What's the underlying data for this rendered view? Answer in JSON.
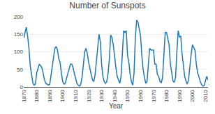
{
  "chart_data": {
    "type": "line",
    "title": "Number of Sunspots",
    "xlabel": "Year",
    "x": [
      1870,
      1871,
      1872,
      1873,
      1874,
      1875,
      1876,
      1877,
      1878,
      1879,
      1880,
      1881,
      1882,
      1883,
      1884,
      1885,
      1886,
      1887,
      1888,
      1889,
      1890,
      1891,
      1892,
      1893,
      1894,
      1895,
      1896,
      1897,
      1898,
      1899,
      1900,
      1901,
      1902,
      1903,
      1904,
      1905,
      1906,
      1907,
      1908,
      1909,
      1910,
      1911,
      1912,
      1913,
      1914,
      1915,
      1916,
      1917,
      1918,
      1919,
      1920,
      1921,
      1922,
      1923,
      1924,
      1925,
      1926,
      1927,
      1928,
      1929,
      1930,
      1931,
      1932,
      1933,
      1934,
      1935,
      1936,
      1937,
      1938,
      1939,
      1940,
      1941,
      1942,
      1943,
      1944,
      1945,
      1946,
      1947,
      1948,
      1949,
      1950,
      1951,
      1952,
      1953,
      1954,
      1955,
      1956,
      1957,
      1958,
      1959,
      1960,
      1961,
      1962,
      1963,
      1964,
      1965,
      1966,
      1967,
      1968,
      1969,
      1970,
      1971,
      1972,
      1973,
      1974,
      1975,
      1976,
      1977,
      1978,
      1979,
      1980,
      1981,
      1982,
      1983,
      1984,
      1985,
      1986,
      1987,
      1988,
      1989,
      1990,
      1991,
      1992,
      1993,
      1994,
      1995,
      1996,
      1997,
      1998,
      1999,
      2000,
      2001,
      2002,
      2003,
      2004,
      2005,
      2006,
      2007,
      2008,
      2009,
      2010,
      2011,
      2012
    ],
    "values": [
      139,
      155,
      170,
      145,
      110,
      60,
      30,
      12,
      5,
      8,
      40,
      55,
      65,
      60,
      55,
      38,
      20,
      10,
      8,
      5,
      7,
      35,
      60,
      90,
      110,
      115,
      105,
      80,
      70,
      40,
      15,
      8,
      10,
      25,
      40,
      55,
      65,
      65,
      55,
      38,
      25,
      10,
      5,
      2,
      8,
      30,
      65,
      100,
      110,
      95,
      70,
      50,
      35,
      20,
      15,
      35,
      70,
      110,
      150,
      130,
      65,
      30,
      15,
      10,
      15,
      40,
      80,
      148,
      140,
      120,
      80,
      55,
      30,
      18,
      10,
      30,
      90,
      160,
      155,
      160,
      90,
      70,
      35,
      15,
      5,
      40,
      140,
      190,
      185,
      160,
      145,
      90,
      50,
      28,
      10,
      15,
      55,
      110,
      105,
      105,
      105,
      65,
      65,
      35,
      30,
      15,
      12,
      27,
      92,
      155,
      155,
      140,
      120,
      65,
      45,
      17,
      13,
      28,
      100,
      160,
      142,
      145,
      94,
      55,
      30,
      17,
      8,
      21,
      64,
      93,
      120,
      111,
      104,
      64,
      40,
      29,
      15,
      7,
      2,
      3,
      18,
      30,
      20
    ],
    "xlim": [
      1870,
      2012
    ],
    "xticks": [
      1870,
      1880,
      1890,
      1900,
      1910,
      1920,
      1930,
      1940,
      1950,
      1960,
      1970,
      1980,
      1990,
      2000,
      2010
    ],
    "ylim": [
      0,
      200
    ],
    "yticks": [
      0,
      50,
      100,
      150,
      200
    ],
    "grid": "y"
  }
}
